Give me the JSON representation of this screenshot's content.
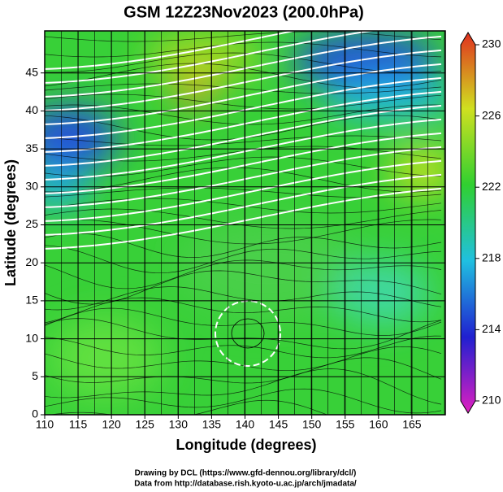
{
  "chart_data": {
    "type": "map",
    "title": "GSM 12Z23Nov2023 (200.0hPa)",
    "x_label": "Longitude (degrees)",
    "y_label": "Latitude  (degrees)",
    "xlim": [
      110,
      170
    ],
    "xticks": [
      110,
      115,
      120,
      125,
      130,
      135,
      140,
      145,
      150,
      155,
      160,
      165
    ],
    "ylim": [
      0,
      50
    ],
    "yticks": [
      0,
      5,
      10,
      15,
      20,
      25,
      30,
      35,
      40,
      45
    ],
    "grid": true,
    "colorbar": {
      "lim": [
        210,
        230
      ],
      "ticks": [
        210,
        214,
        218,
        222,
        226,
        230
      ]
    },
    "credits": [
      "Drawing by DCL (https://www.gfd-dennou.org/library/dcl/)",
      "Data from http://database.rish.kyoto-u.ac.jp/arch/jmadata/"
    ]
  }
}
